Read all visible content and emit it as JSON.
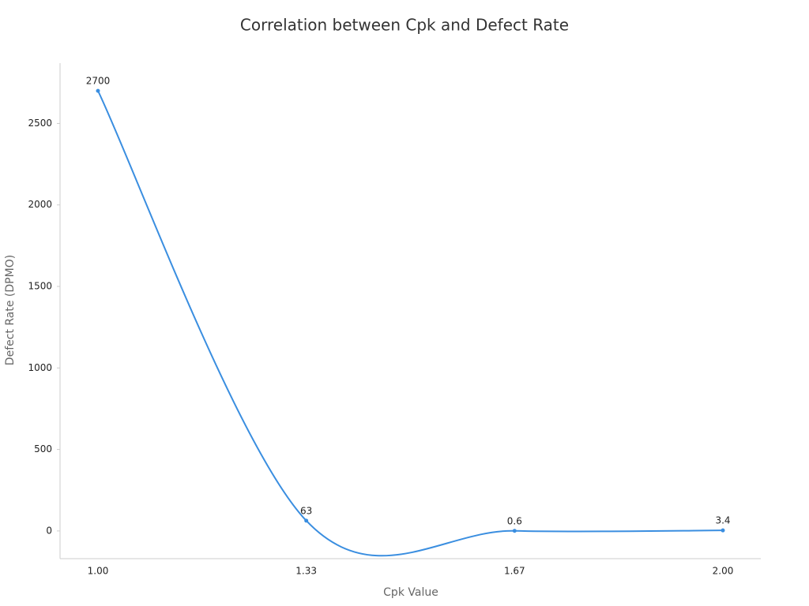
{
  "chart_data": {
    "type": "line",
    "title": "Correlation between Cpk and Defect Rate",
    "x_label": "Cpk Value",
    "y_label": "Defect Rate (DPMO)",
    "categories": [
      "1.00",
      "1.33",
      "1.67",
      "2.00"
    ],
    "values": [
      2700,
      63,
      0.6,
      3.4
    ],
    "color": "#3a8ee0",
    "ylim": [
      -170,
      2870
    ],
    "yticks": [
      0,
      500,
      1000,
      1500,
      2000,
      2500
    ],
    "grid": false,
    "smooth": true
  }
}
